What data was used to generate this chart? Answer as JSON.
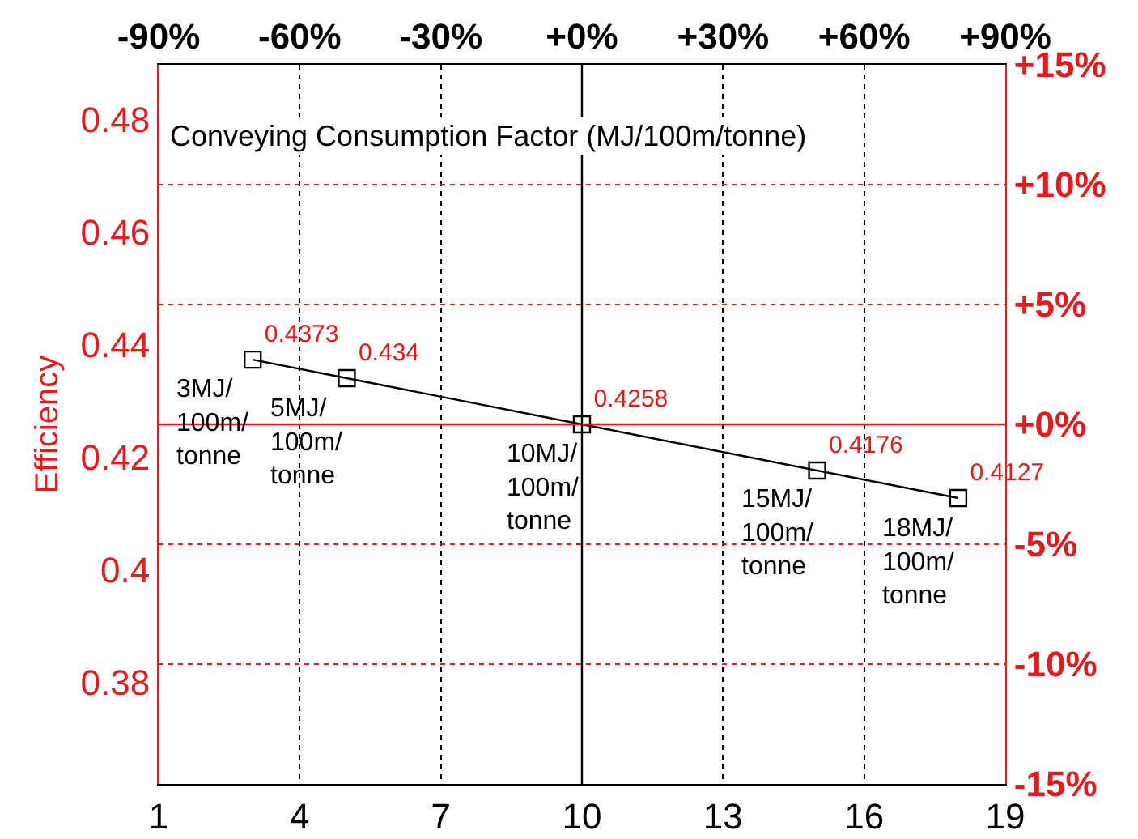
{
  "chart_data": {
    "type": "line",
    "ylabel": "Efficiency",
    "annotations": [
      "Conveying Consumption Factor (MJ/100m/tonne)",
      {
        "text": "3MJ/\n100m/\ntonne",
        "x": 3,
        "y": 0.4373
      },
      {
        "text": "5MJ/\n100m/\ntonne",
        "x": 5,
        "y": 0.434
      },
      {
        "text": "10MJ/\n100m/\ntonne",
        "x": 10,
        "y": 0.4258
      },
      {
        "text": "15MJ/\n100m/\ntonne",
        "x": 15,
        "y": 0.4176
      },
      {
        "text": "18MJ/\n100m/\ntonne",
        "x": 18,
        "y": 0.4127
      }
    ],
    "x": [
      3,
      5,
      10,
      15,
      18
    ],
    "series": [
      {
        "color": "#000000",
        "values": [
          0.4373,
          0.434,
          0.4258,
          0.4176,
          0.4127
        ]
      }
    ],
    "data_labels": true,
    "marker": "square",
    "line_style": "solid",
    "grid": true,
    "legend": false,
    "xlim": [
      1,
      19
    ],
    "xticks": [
      1,
      4,
      7,
      10,
      13,
      16,
      19
    ],
    "ylim": [
      0.3619,
      0.4897
    ],
    "yticks": [
      0.38,
      0.4,
      0.42,
      0.44,
      0.46,
      0.48
    ],
    "y2lim": [
      -15,
      15
    ],
    "y2ticks": [
      {
        "value": -15,
        "label": "-15%"
      },
      {
        "value": -10,
        "label": "-10%"
      },
      {
        "value": -5,
        "label": "-5%"
      },
      {
        "value": 0,
        "label": "+0%"
      },
      {
        "value": 5,
        "label": "+5%"
      },
      {
        "value": 10,
        "label": "+10%"
      },
      {
        "value": 15,
        "label": "+15%"
      }
    ],
    "x2lim": [
      -90,
      90
    ],
    "x2ticks": [
      {
        "value": -90,
        "label": "-90%"
      },
      {
        "value": -60,
        "label": "-60%"
      },
      {
        "value": -30,
        "label": "-30%"
      },
      {
        "value": 0,
        "label": "+0%"
      },
      {
        "value": 30,
        "label": "+30%"
      },
      {
        "value": 60,
        "label": "+60%"
      },
      {
        "value": 90,
        "label": "+90%"
      }
    ],
    "ref_lines": [
      {
        "axis": "y2",
        "value": 0,
        "color": "#e41a1c"
      },
      {
        "axis": "x",
        "value": 10,
        "color": "#000000"
      }
    ]
  }
}
